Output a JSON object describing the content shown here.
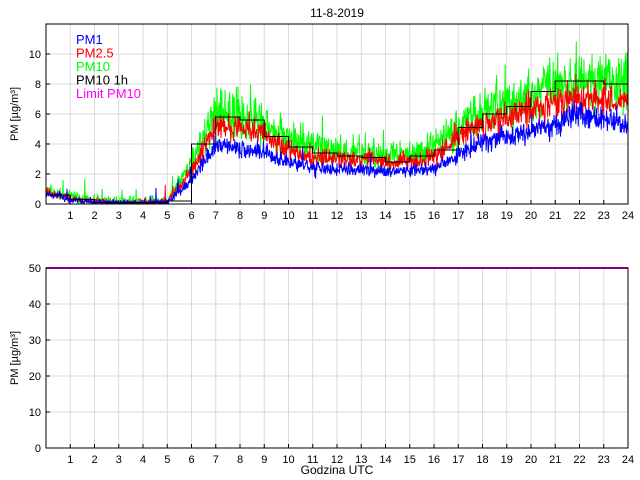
{
  "chart_data": [
    {
      "type": "line",
      "title": "11-8-2019",
      "xlabel": "",
      "ylabel": "PM [µg/m³]",
      "xlim": [
        0,
        24
      ],
      "ylim": [
        0,
        12
      ],
      "xticks": [
        1,
        2,
        3,
        4,
        5,
        6,
        7,
        8,
        9,
        10,
        11,
        12,
        13,
        14,
        15,
        16,
        17,
        18,
        19,
        20,
        21,
        22,
        23,
        24
      ],
      "yticks": [
        0,
        2,
        4,
        6,
        8,
        10
      ],
      "grid": true,
      "legend_position": "top-left",
      "hourly_mean_hours": [
        0,
        1,
        2,
        3,
        4,
        5,
        6,
        7,
        8,
        9,
        10,
        11,
        12,
        13,
        14,
        15,
        16,
        17,
        18,
        19,
        20,
        21,
        22,
        23
      ],
      "series": [
        {
          "name": "PM1",
          "color": "#0000ff",
          "style": "noisy-line",
          "values": [
            0.7,
            0.3,
            0.1,
            0.1,
            0.1,
            0.1,
            1.6,
            3.9,
            3.7,
            3.4,
            2.8,
            2.4,
            2.3,
            2.3,
            2.2,
            2.2,
            2.4,
            3.3,
            4.2,
            4.5,
            5.0,
            5.3,
            5.9,
            5.6,
            5.4
          ]
        },
        {
          "name": "PM2.5",
          "color": "#ff0000",
          "style": "noisy-line",
          "values": [
            0.8,
            0.35,
            0.15,
            0.1,
            0.1,
            0.15,
            2.2,
            5.2,
            5.2,
            4.6,
            3.6,
            3.1,
            3.0,
            3.0,
            2.8,
            2.8,
            3.2,
            4.5,
            5.3,
            5.8,
            6.3,
            6.8,
            7.2,
            7.0,
            6.7
          ]
        },
        {
          "name": "PM10",
          "color": "#00ff00",
          "style": "noisy-line",
          "values": [
            0.9,
            0.45,
            0.25,
            0.15,
            0.15,
            0.2,
            2.8,
            6.0,
            6.0,
            5.3,
            4.3,
            3.7,
            3.5,
            3.4,
            3.3,
            3.3,
            3.7,
            5.2,
            6.1,
            6.6,
            7.3,
            7.8,
            8.6,
            8.2,
            7.9
          ]
        },
        {
          "name": "PM10 1h",
          "color": "#000000",
          "style": "step",
          "values": [
            0.6,
            0.3,
            0.1,
            0.1,
            0.1,
            0.2,
            4.0,
            5.8,
            5.6,
            4.5,
            3.8,
            3.4,
            3.2,
            3.1,
            2.8,
            3.2,
            3.6,
            5.1,
            6.0,
            6.5,
            7.5,
            8.2,
            8.2,
            8.0
          ]
        }
      ],
      "legend": [
        "PM1",
        "PM2.5",
        "PM10",
        "PM10 1h",
        "Limit PM10"
      ],
      "legend_colors": [
        "#0000ff",
        "#ff0000",
        "#00ff00",
        "#000000",
        "#ff00ff"
      ]
    },
    {
      "type": "line",
      "title": "",
      "xlabel": "Godzina UTC",
      "ylabel": "PM [µg/m³]",
      "xlim": [
        0,
        24
      ],
      "ylim": [
        0,
        50
      ],
      "xticks": [
        1,
        2,
        3,
        4,
        5,
        6,
        7,
        8,
        9,
        10,
        11,
        12,
        13,
        14,
        15,
        16,
        17,
        18,
        19,
        20,
        21,
        22,
        23,
        24
      ],
      "yticks": [
        0,
        10,
        20,
        30,
        40,
        50
      ],
      "grid": true,
      "series": [
        {
          "name": "Limit PM10",
          "color": "#ff00ff",
          "x": [
            0,
            24
          ],
          "values": [
            50,
            50
          ]
        }
      ]
    }
  ]
}
